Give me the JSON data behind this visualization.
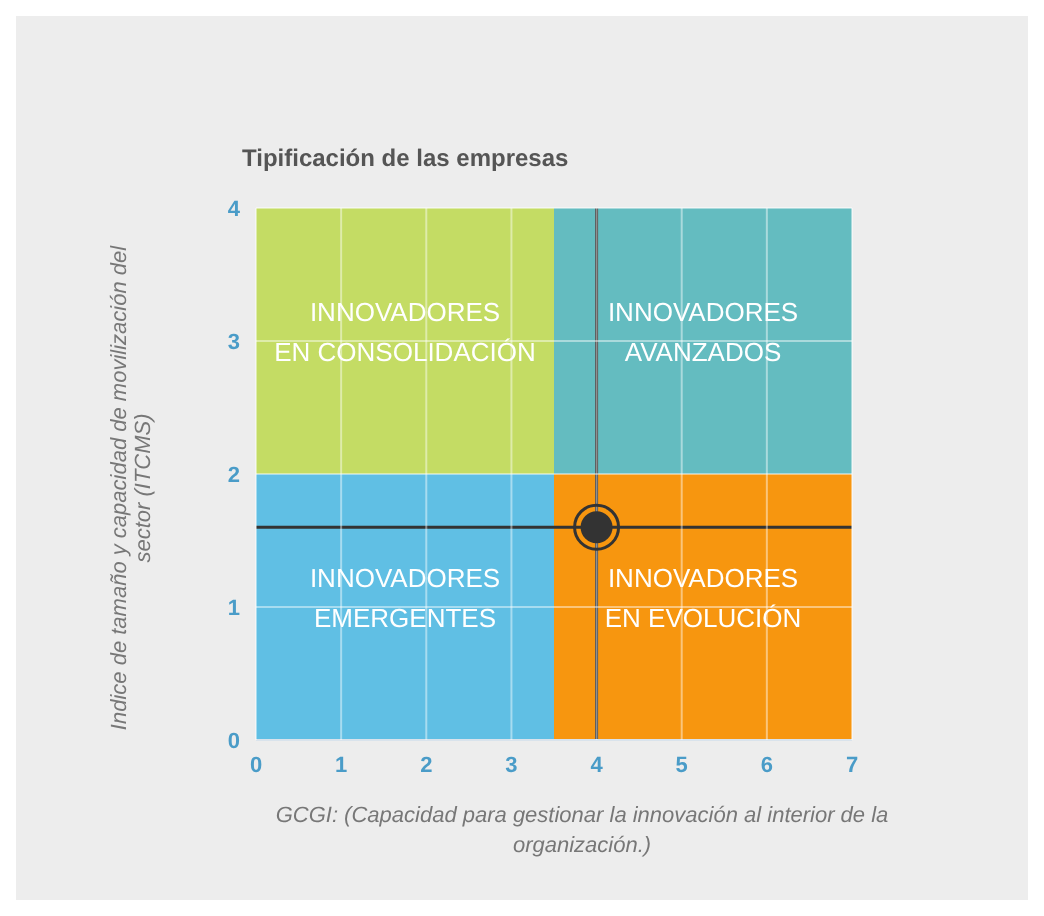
{
  "chart_data": {
    "type": "scatter",
    "title": "Tipificación de las empresas",
    "xlabel": "GCGI: (Capacidad para gestionar la innovación al interior de la organización.)",
    "ylabel": "Indice de tamaño y capacidad de movilización del sector (ITCMS)",
    "x": [
      4
    ],
    "values": [
      1.6
    ],
    "color": "#333333",
    "marker": "circle",
    "xlim": [
      0,
      7
    ],
    "xticks": [
      0,
      1,
      2,
      3,
      4,
      5,
      6,
      7
    ],
    "ylim": [
      0,
      4
    ],
    "yticks": [
      0,
      1,
      2,
      3,
      4
    ],
    "grid": true,
    "ref_lines": [
      {
        "axis": "x",
        "value": 4,
        "color": "#333333"
      },
      {
        "axis": "y",
        "value": 1.6,
        "color": "#333333"
      }
    ],
    "annotations": [
      "INNOVADORES EN CONSOLIDACIÓN",
      "INNOVADORES AVANZADOS",
      "INNOVADORES EMERGENTES",
      "INNOVADORES EN EVOLUCIÓN"
    ]
  }
}
